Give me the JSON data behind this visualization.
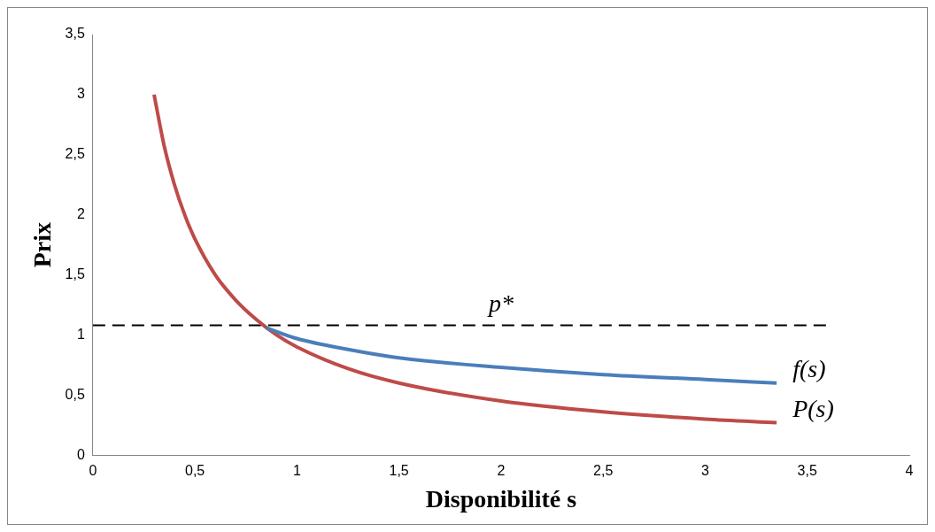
{
  "chart_data": {
    "type": "line",
    "xlabel": "Disponibilité s",
    "ylabel": "Prix",
    "xlim": [
      0,
      4
    ],
    "xticks": [
      0,
      {
        "value": 0.5,
        "label": "0,5"
      },
      1,
      {
        "value": 1.5,
        "label": "1,5"
      },
      2,
      {
        "value": 2.5,
        "label": "2,5"
      },
      3,
      {
        "value": 3.5,
        "label": "3,5"
      },
      4
    ],
    "ylim": [
      0,
      3.5
    ],
    "yticks": [
      0,
      {
        "value": 0.5,
        "label": "0,5"
      },
      1,
      {
        "value": 1.5,
        "label": "1,5"
      },
      2,
      {
        "value": 2.5,
        "label": "2,5"
      },
      3,
      {
        "value": 3.5,
        "label": "3,5"
      }
    ],
    "grid": false,
    "legend": false,
    "marker": "none",
    "line_style": "solid",
    "series": [
      {
        "name": "f(s)",
        "color": "#4a7ebb",
        "x": [
          0.85,
          1,
          1.25,
          1.5,
          2,
          2.5,
          3,
          3.35
        ],
        "values": [
          1.06,
          0.97,
          0.88,
          0.81,
          0.73,
          0.67,
          0.63,
          0.6
        ]
      },
      {
        "name": "P(s)",
        "color": "#be4b48",
        "x": [
          0.3,
          0.35,
          0.4,
          0.45,
          0.5,
          0.6,
          0.7,
          0.8,
          0.9,
          1,
          1.25,
          1.5,
          2,
          2.5,
          3,
          3.35
        ],
        "values": [
          3,
          2.57,
          2.25,
          2,
          1.8,
          1.5,
          1.29,
          1.13,
          1,
          0.9,
          0.72,
          0.6,
          0.45,
          0.36,
          0.3,
          0.27
        ]
      },
      {
        "type": "line",
        "color": "#000000",
        "line_style": "dashed",
        "x": [
          0,
          3.6
        ],
        "values": [
          1.08,
          1.08
        ]
      }
    ],
    "annotations": [
      {
        "text": "p*",
        "x": 2,
        "y": 1.08
      }
    ]
  }
}
